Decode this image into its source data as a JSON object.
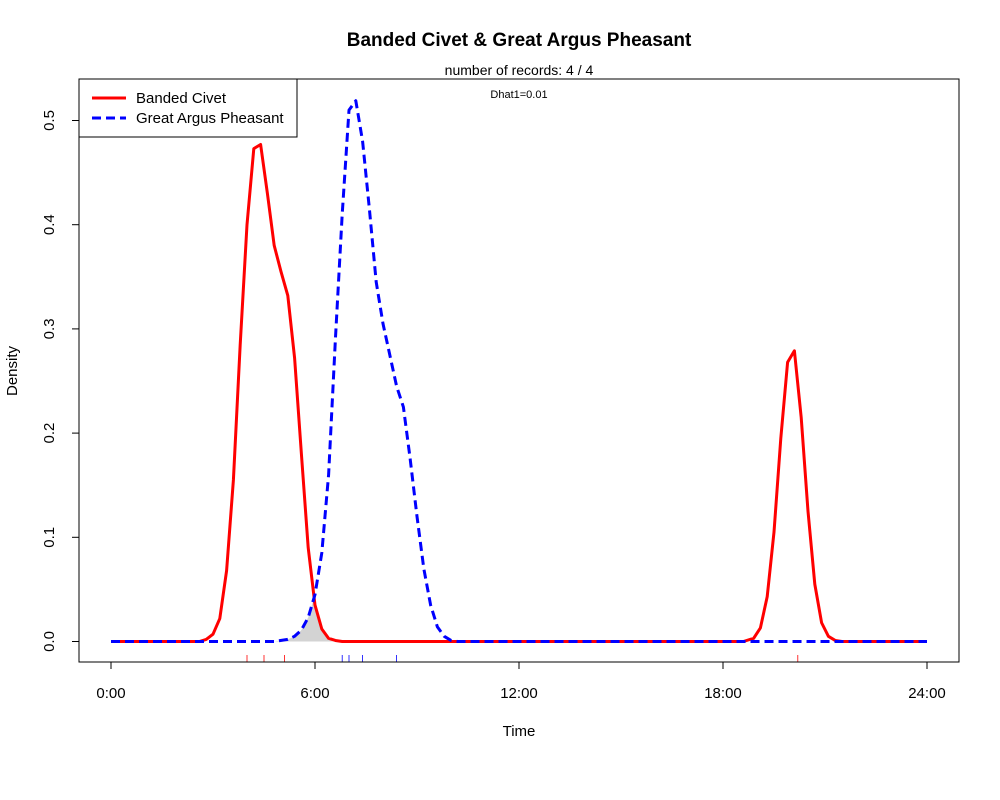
{
  "chart_data": {
    "type": "line",
    "title": "Banded Civet & Great Argus Pheasant",
    "subtitle": "number of records: 4 / 4",
    "annotation": "Dhat1=0.01",
    "xlabel": "Time",
    "ylabel": "Density",
    "xlim": [
      0,
      24
    ],
    "ylim": [
      0,
      0.5
    ],
    "x_ticks": [
      {
        "value": 0,
        "label": "0:00"
      },
      {
        "value": 6,
        "label": "6:00"
      },
      {
        "value": 12,
        "label": "12:00"
      },
      {
        "value": 18,
        "label": "18:00"
      },
      {
        "value": 24,
        "label": "24:00"
      }
    ],
    "y_ticks": [
      {
        "value": 0.0,
        "label": "0.0"
      },
      {
        "value": 0.1,
        "label": "0.1"
      },
      {
        "value": 0.2,
        "label": "0.2"
      },
      {
        "value": 0.3,
        "label": "0.3"
      },
      {
        "value": 0.4,
        "label": "0.4"
      },
      {
        "value": 0.5,
        "label": "0.5"
      }
    ],
    "legend_position": "top-left",
    "grid": false,
    "series": [
      {
        "name": "Banded Civet",
        "color": "#ff0000",
        "style": "solid",
        "points": [
          [
            0,
            0
          ],
          [
            2.6,
            0
          ],
          [
            2.8,
            0.002
          ],
          [
            3.0,
            0.007
          ],
          [
            3.2,
            0.022
          ],
          [
            3.4,
            0.068
          ],
          [
            3.6,
            0.155
          ],
          [
            3.8,
            0.285
          ],
          [
            4.0,
            0.4
          ],
          [
            4.2,
            0.473
          ],
          [
            4.4,
            0.477
          ],
          [
            4.6,
            0.43
          ],
          [
            4.8,
            0.38
          ],
          [
            5.0,
            0.355
          ],
          [
            5.2,
            0.332
          ],
          [
            5.4,
            0.272
          ],
          [
            5.6,
            0.18
          ],
          [
            5.8,
            0.09
          ],
          [
            6.0,
            0.035
          ],
          [
            6.2,
            0.012
          ],
          [
            6.4,
            0.003
          ],
          [
            6.6,
            0.001
          ],
          [
            6.8,
            0
          ],
          [
            18.6,
            0
          ],
          [
            18.9,
            0.003
          ],
          [
            19.1,
            0.013
          ],
          [
            19.3,
            0.043
          ],
          [
            19.5,
            0.105
          ],
          [
            19.7,
            0.195
          ],
          [
            19.9,
            0.268
          ],
          [
            20.1,
            0.279
          ],
          [
            20.3,
            0.215
          ],
          [
            20.5,
            0.125
          ],
          [
            20.7,
            0.055
          ],
          [
            20.9,
            0.018
          ],
          [
            21.1,
            0.005
          ],
          [
            21.3,
            0.001
          ],
          [
            21.5,
            0
          ],
          [
            24,
            0
          ]
        ]
      },
      {
        "name": "Great Argus Pheasant",
        "color": "#0000ff",
        "style": "dashed",
        "points": [
          [
            0,
            0
          ],
          [
            4.8,
            0
          ],
          [
            5.2,
            0.002
          ],
          [
            5.4,
            0.005
          ],
          [
            5.6,
            0.011
          ],
          [
            5.8,
            0.023
          ],
          [
            6.0,
            0.045
          ],
          [
            6.2,
            0.085
          ],
          [
            6.4,
            0.16
          ],
          [
            6.6,
            0.29
          ],
          [
            6.8,
            0.41
          ],
          [
            7.0,
            0.51
          ],
          [
            7.2,
            0.519
          ],
          [
            7.4,
            0.48
          ],
          [
            7.6,
            0.415
          ],
          [
            7.8,
            0.345
          ],
          [
            8.0,
            0.305
          ],
          [
            8.2,
            0.275
          ],
          [
            8.4,
            0.245
          ],
          [
            8.6,
            0.225
          ],
          [
            8.8,
            0.175
          ],
          [
            9.0,
            0.12
          ],
          [
            9.2,
            0.07
          ],
          [
            9.4,
            0.035
          ],
          [
            9.6,
            0.014
          ],
          [
            9.8,
            0.005
          ],
          [
            10.0,
            0.001
          ],
          [
            10.2,
            0
          ],
          [
            24,
            0
          ]
        ]
      }
    ],
    "overlap_fill_color": "#d3d3d3",
    "rug": [
      {
        "series": "Banded Civet",
        "color": "#ff0000",
        "x": [
          4.0,
          4.5,
          5.1,
          20.2
        ]
      },
      {
        "series": "Great Argus Pheasant",
        "color": "#0000ff",
        "x": [
          6.8,
          7.0,
          7.4,
          8.4
        ]
      }
    ]
  }
}
